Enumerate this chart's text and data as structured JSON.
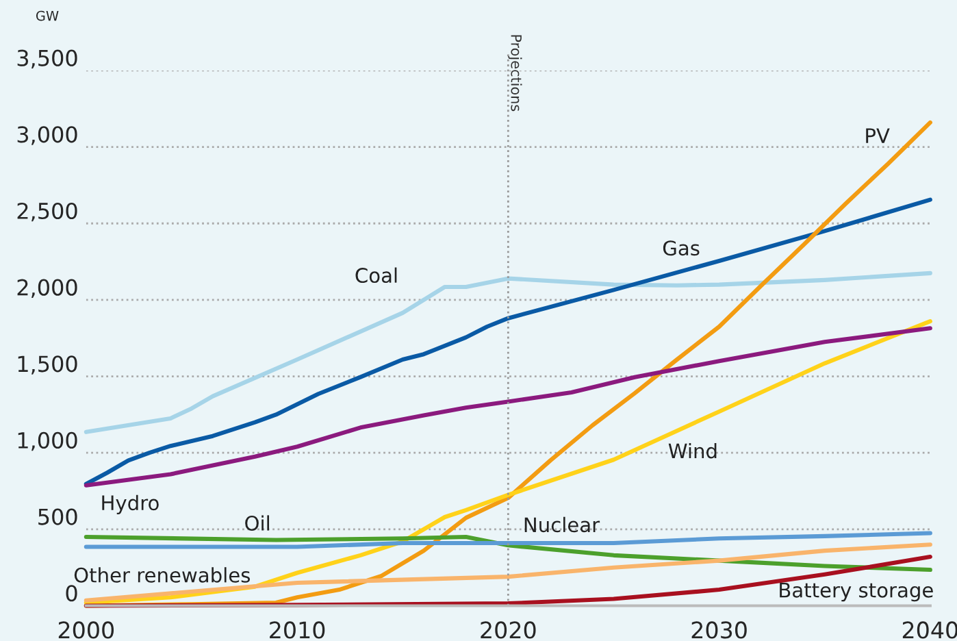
{
  "chart_data": {
    "type": "line",
    "ylabel": "GW",
    "xlim": [
      2000,
      2040
    ],
    "ylim": [
      0,
      3500
    ],
    "xticks": [
      2000,
      2010,
      2020,
      2030,
      2040
    ],
    "yticks": [
      {
        "value": 0,
        "label": "0"
      },
      {
        "value": 500,
        "label": "500"
      },
      {
        "value": 1000,
        "label": "1,000"
      },
      {
        "value": 1500,
        "label": "1,500"
      },
      {
        "value": 2000,
        "label": "2,000"
      },
      {
        "value": 2500,
        "label": "2,500"
      },
      {
        "value": 3000,
        "label": "3,000"
      },
      {
        "value": 3500,
        "label": "3,500"
      }
    ],
    "grid": "y",
    "marker": "none",
    "line_style": "solid",
    "ref_lines": [
      {
        "axis": "x",
        "value": 2020,
        "label": "Projections",
        "line_style": "dotted",
        "color": "#999999"
      }
    ],
    "series": [
      {
        "name": "Coal",
        "color": "#a6d4e8",
        "x": [
          2000,
          2004,
          2005,
          2006,
          2010,
          2015,
          2017,
          2018,
          2020,
          2025,
          2028,
          2030,
          2035,
          2040
        ],
        "values": [
          1136,
          1225,
          1290,
          1370,
          1610,
          1915,
          2085,
          2085,
          2140,
          2100,
          2095,
          2100,
          2130,
          2175
        ]
      },
      {
        "name": "Gas",
        "color": "#0a5aa5",
        "x": [
          2000,
          2001,
          2002,
          2003,
          2004,
          2006,
          2008,
          2009,
          2011,
          2013,
          2015,
          2016,
          2018,
          2019,
          2020,
          2025,
          2030,
          2035,
          2040
        ],
        "values": [
          796,
          870,
          950,
          1000,
          1045,
          1110,
          1200,
          1250,
          1385,
          1495,
          1610,
          1645,
          1755,
          1825,
          1880,
          2065,
          2255,
          2450,
          2655
        ]
      },
      {
        "name": "PV",
        "color": "#f39c12",
        "x": [
          2000,
          2005,
          2009,
          2010,
          2012,
          2014,
          2016,
          2018,
          2020,
          2022,
          2024,
          2026,
          2028,
          2030,
          2032,
          2034,
          2036,
          2038,
          2040
        ],
        "values": [
          0,
          10,
          20,
          55,
          105,
          195,
          360,
          575,
          705,
          950,
          1180,
          1390,
          1610,
          1825,
          2095,
          2360,
          2630,
          2890,
          3160
        ]
      },
      {
        "name": "Wind",
        "color": "#ffd21a",
        "x": [
          2000,
          2004,
          2008,
          2010,
          2013,
          2015,
          2017,
          2018,
          2020,
          2025,
          2030,
          2035,
          2040
        ],
        "values": [
          20,
          55,
          125,
          215,
          330,
          420,
          580,
          625,
          725,
          955,
          1270,
          1585,
          1860
        ]
      },
      {
        "name": "Hydro",
        "color": "#8b1a7e",
        "x": [
          2000,
          2004,
          2008,
          2010,
          2013,
          2016,
          2018,
          2020,
          2023,
          2026,
          2030,
          2035,
          2040
        ],
        "values": [
          787,
          860,
          975,
          1040,
          1165,
          1245,
          1295,
          1335,
          1395,
          1495,
          1600,
          1725,
          1815
        ]
      },
      {
        "name": "Oil",
        "color": "#4ca02c",
        "x": [
          2000,
          2009,
          2015,
          2018,
          2020,
          2025,
          2030,
          2035,
          2040
        ],
        "values": [
          450,
          430,
          440,
          450,
          395,
          330,
          295,
          260,
          235
        ]
      },
      {
        "name": "Nuclear",
        "color": "#5b9bd5",
        "x": [
          2000,
          2010,
          2015,
          2020,
          2025,
          2030,
          2035,
          2040
        ],
        "values": [
          385,
          385,
          410,
          410,
          410,
          440,
          455,
          475
        ]
      },
      {
        "name": "Other renewables",
        "color": "#f9b46b",
        "x": [
          2000,
          2010,
          2020,
          2025,
          2030,
          2035,
          2040
        ],
        "values": [
          35,
          150,
          190,
          250,
          295,
          360,
          400
        ]
      },
      {
        "name": "Battery storage",
        "color": "#a8101f",
        "x": [
          2000,
          2010,
          2020,
          2025,
          2030,
          2035,
          2040
        ],
        "values": [
          0,
          5,
          15,
          45,
          105,
          205,
          320
        ]
      }
    ]
  }
}
